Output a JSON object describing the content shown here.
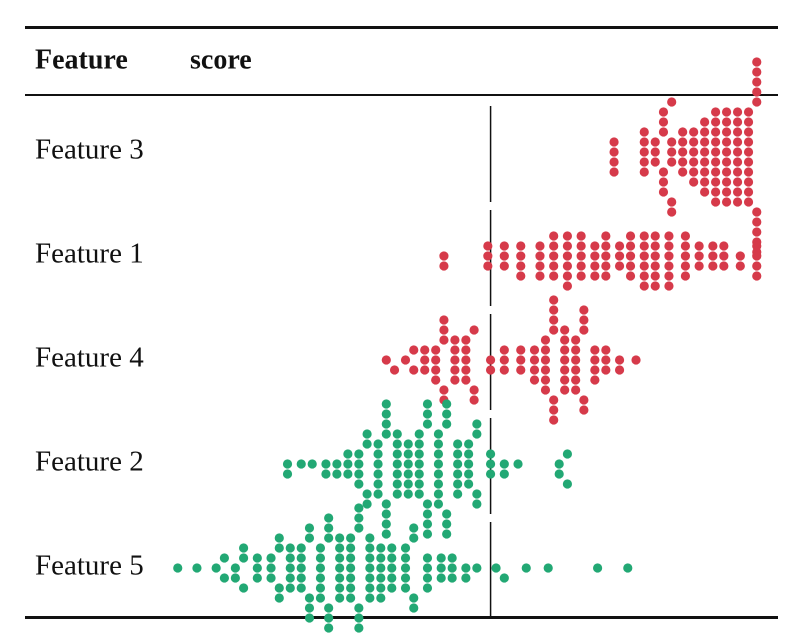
{
  "chart_data": {
    "type": "beeswarm",
    "columns": [
      "Feature",
      "score"
    ],
    "xlim": [
      -1.15,
      1.0
    ],
    "reference_line": 0,
    "rows": [
      {
        "name": "Feature 3",
        "color": "#d63a4a",
        "values": [
          0.45,
          0.45,
          0.45,
          0.45,
          0.56,
          0.56,
          0.56,
          0.56,
          0.56,
          0.6,
          0.6,
          0.6,
          0.63,
          0.63,
          0.63,
          0.63,
          0.63,
          0.63,
          0.66,
          0.66,
          0.66,
          0.66,
          0.66,
          0.66,
          0.7,
          0.7,
          0.7,
          0.7,
          0.7,
          0.74,
          0.74,
          0.74,
          0.74,
          0.74,
          0.74,
          0.78,
          0.78,
          0.78,
          0.78,
          0.78,
          0.78,
          0.78,
          0.78,
          0.82,
          0.82,
          0.82,
          0.82,
          0.82,
          0.82,
          0.82,
          0.82,
          0.82,
          0.82,
          0.86,
          0.86,
          0.86,
          0.86,
          0.86,
          0.86,
          0.86,
          0.86,
          0.86,
          0.86,
          0.9,
          0.9,
          0.9,
          0.9,
          0.9,
          0.9,
          0.9,
          0.9,
          0.9,
          0.9,
          0.94,
          0.94,
          0.94,
          0.94,
          0.94,
          0.94,
          0.94,
          0.94,
          0.94,
          0.94,
          0.97,
          0.97,
          0.97,
          0.97,
          0.97,
          0.97,
          0.97,
          0.97,
          0.97,
          0.97
        ]
      },
      {
        "name": "Feature 1",
        "color": "#d63a4a",
        "values": [
          -0.17,
          -0.17,
          -0.01,
          -0.01,
          -0.01,
          0.05,
          0.05,
          0.05,
          0.11,
          0.11,
          0.11,
          0.11,
          0.18,
          0.18,
          0.18,
          0.18,
          0.23,
          0.23,
          0.23,
          0.23,
          0.23,
          0.28,
          0.28,
          0.28,
          0.28,
          0.28,
          0.28,
          0.33,
          0.33,
          0.33,
          0.33,
          0.33,
          0.38,
          0.38,
          0.38,
          0.38,
          0.42,
          0.42,
          0.42,
          0.42,
          0.42,
          0.47,
          0.47,
          0.47,
          0.51,
          0.51,
          0.51,
          0.51,
          0.51,
          0.56,
          0.56,
          0.56,
          0.56,
          0.56,
          0.56,
          0.6,
          0.6,
          0.6,
          0.6,
          0.6,
          0.6,
          0.65,
          0.65,
          0.65,
          0.65,
          0.65,
          0.65,
          0.71,
          0.71,
          0.71,
          0.71,
          0.71,
          0.76,
          0.76,
          0.76,
          0.81,
          0.81,
          0.81,
          0.85,
          0.85,
          0.85,
          0.91,
          0.91,
          0.97,
          0.97,
          0.97,
          0.97
        ]
      },
      {
        "name": "Feature 4",
        "color": "#d63a4a",
        "values": [
          -0.38,
          -0.35,
          -0.31,
          -0.28,
          -0.28,
          -0.24,
          -0.24,
          -0.24,
          -0.2,
          -0.2,
          -0.2,
          -0.2,
          -0.17,
          -0.17,
          -0.17,
          -0.17,
          -0.17,
          -0.13,
          -0.13,
          -0.13,
          -0.13,
          -0.13,
          -0.09,
          -0.09,
          -0.09,
          -0.09,
          -0.09,
          -0.06,
          -0.06,
          -0.06,
          0,
          0,
          0.05,
          0.05,
          0.05,
          0.11,
          0.11,
          0.11,
          0.16,
          0.16,
          0.16,
          0.16,
          0.2,
          0.2,
          0.2,
          0.2,
          0.2,
          0.2,
          0.23,
          0.23,
          0.23,
          0.23,
          0.23,
          0.23,
          0.23,
          0.27,
          0.27,
          0.27,
          0.27,
          0.27,
          0.27,
          0.27,
          0.31,
          0.31,
          0.31,
          0.31,
          0.31,
          0.31,
          0.34,
          0.34,
          0.34,
          0.34,
          0.34,
          0.38,
          0.38,
          0.38,
          0.38,
          0.42,
          0.42,
          0.42,
          0.47,
          0.47,
          0.53
        ]
      },
      {
        "name": "Feature 2",
        "color": "#22a874",
        "values": [
          -0.74,
          -0.74,
          -0.69,
          -0.65,
          -0.6,
          -0.6,
          -0.56,
          -0.56,
          -0.52,
          -0.52,
          -0.52,
          -0.48,
          -0.48,
          -0.48,
          -0.48,
          -0.45,
          -0.45,
          -0.45,
          -0.45,
          -0.41,
          -0.41,
          -0.41,
          -0.41,
          -0.41,
          -0.41,
          -0.38,
          -0.38,
          -0.38,
          -0.38,
          -0.38,
          -0.38,
          -0.38,
          -0.38,
          -0.34,
          -0.34,
          -0.34,
          -0.34,
          -0.34,
          -0.34,
          -0.34,
          -0.3,
          -0.3,
          -0.3,
          -0.3,
          -0.3,
          -0.3,
          -0.26,
          -0.26,
          -0.26,
          -0.26,
          -0.26,
          -0.26,
          -0.26,
          -0.23,
          -0.23,
          -0.23,
          -0.23,
          -0.23,
          -0.23,
          -0.23,
          -0.19,
          -0.19,
          -0.19,
          -0.19,
          -0.19,
          -0.19,
          -0.19,
          -0.19,
          -0.16,
          -0.16,
          -0.16,
          -0.16,
          -0.16,
          -0.16,
          -0.12,
          -0.12,
          -0.12,
          -0.12,
          -0.12,
          -0.12,
          -0.08,
          -0.08,
          -0.08,
          -0.08,
          -0.08,
          -0.05,
          -0.05,
          -0.05,
          -0.05,
          0,
          0,
          0,
          0.05,
          0.05,
          0.1,
          0.25,
          0.25,
          0.28,
          0.28
        ]
      },
      {
        "name": "Feature 5",
        "color": "#22a874",
        "values": [
          -1.14,
          -1.07,
          -1.0,
          -0.97,
          -0.97,
          -0.93,
          -0.93,
          -0.9,
          -0.9,
          -0.9,
          -0.85,
          -0.85,
          -0.85,
          -0.8,
          -0.8,
          -0.8,
          -0.77,
          -0.77,
          -0.77,
          -0.77,
          -0.73,
          -0.73,
          -0.73,
          -0.73,
          -0.73,
          -0.69,
          -0.69,
          -0.69,
          -0.69,
          -0.69,
          -0.66,
          -0.66,
          -0.66,
          -0.66,
          -0.66,
          -0.62,
          -0.62,
          -0.62,
          -0.62,
          -0.62,
          -0.62,
          -0.59,
          -0.59,
          -0.59,
          -0.59,
          -0.59,
          -0.59,
          -0.55,
          -0.55,
          -0.55,
          -0.55,
          -0.55,
          -0.55,
          -0.55,
          -0.51,
          -0.51,
          -0.51,
          -0.51,
          -0.51,
          -0.51,
          -0.51,
          -0.48,
          -0.48,
          -0.48,
          -0.48,
          -0.48,
          -0.48,
          -0.44,
          -0.44,
          -0.44,
          -0.44,
          -0.44,
          -0.44,
          -0.44,
          -0.4,
          -0.4,
          -0.4,
          -0.4,
          -0.4,
          -0.4,
          -0.36,
          -0.36,
          -0.36,
          -0.36,
          -0.36,
          -0.31,
          -0.31,
          -0.31,
          -0.31,
          -0.31,
          -0.28,
          -0.28,
          -0.28,
          -0.28,
          -0.23,
          -0.23,
          -0.23,
          -0.23,
          -0.18,
          -0.18,
          -0.18,
          -0.14,
          -0.14,
          -0.14,
          -0.09,
          -0.09,
          -0.05,
          0.02,
          0.05,
          0.13,
          0.21,
          0.39,
          0.5
        ]
      }
    ]
  }
}
